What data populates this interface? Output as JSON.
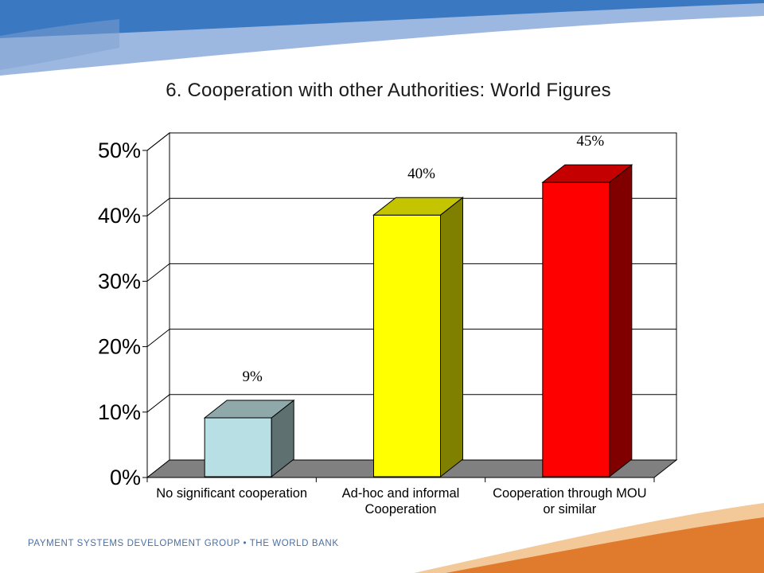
{
  "slide": {
    "title": "6. Cooperation with other Authorities: World Figures",
    "footer": "PAYMENT SYSTEMS DEVELOPMENT GROUP • THE WORLD BANK"
  },
  "colors": {
    "banner_dark": "#3a78c2",
    "banner_light": "#9db8e0",
    "swoosh_orange": "#e07a2c",
    "swoosh_light": "#f3c99a"
  },
  "chart_data": {
    "type": "bar",
    "title": "",
    "xlabel": "",
    "ylabel": "",
    "ylim": [
      0,
      50
    ],
    "y_ticks": [
      "0%",
      "10%",
      "20%",
      "30%",
      "40%",
      "50%"
    ],
    "y_tick_values": [
      0,
      10,
      20,
      30,
      40,
      50
    ],
    "grid": true,
    "categories": [
      [
        "No significant cooperation"
      ],
      [
        "Ad-hoc and informal",
        "Cooperation"
      ],
      [
        "Cooperation through MOU",
        "or similar"
      ]
    ],
    "values": [
      9,
      40,
      45
    ],
    "value_labels": [
      "9%",
      "40%",
      "45%"
    ],
    "bar_colors": [
      {
        "front": "#b8dfe3",
        "side": "#5f7070",
        "top": "#8fa8aa"
      },
      {
        "front": "#ffff00",
        "side": "#808000",
        "top": "#c4c400"
      },
      {
        "front": "#ff0000",
        "side": "#800000",
        "top": "#c40000"
      }
    ],
    "legend": "none"
  }
}
